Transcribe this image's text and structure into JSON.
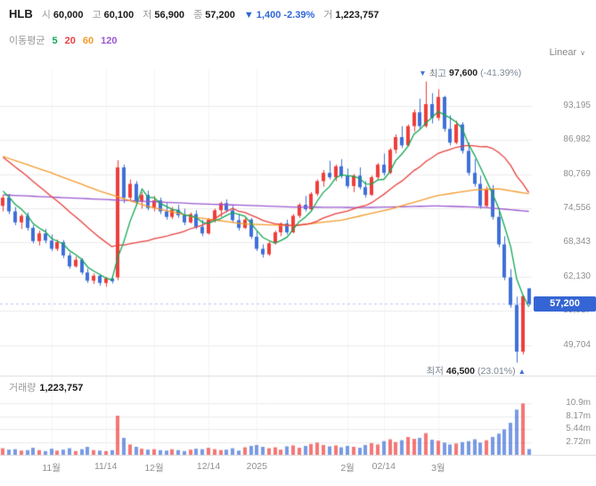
{
  "header": {
    "symbol": "HLB",
    "stats": [
      {
        "label": "시",
        "value": "60,000"
      },
      {
        "label": "고",
        "value": "60,100"
      },
      {
        "label": "저",
        "value": "56,900"
      },
      {
        "label": "종",
        "value": "57,200"
      }
    ],
    "change": {
      "arrow": "▼",
      "value": "1,400",
      "percent": "-2.39%"
    },
    "trade": {
      "label": "거",
      "value": "1,223,757"
    }
  },
  "legend": {
    "title": "이동평균",
    "items": [
      {
        "label": "5",
        "color": "#11a753"
      },
      {
        "label": "20",
        "color": "#e8413e"
      },
      {
        "label": "60",
        "color": "#f59b2c"
      },
      {
        "label": "120",
        "color": "#9b59d0"
      }
    ]
  },
  "toolbar": {
    "scale_label": "Linear",
    "chevron": "∨"
  },
  "annotations": {
    "high": {
      "marker": "▼",
      "label": "최고",
      "value": "97,600",
      "percent": "(-41.39%)"
    },
    "low": {
      "label": "최저",
      "value": "46,500",
      "percent": "(23.01%)",
      "marker": "▲"
    }
  },
  "price_badge": "57,200",
  "volume_panel": {
    "label": "거래량",
    "value": "1,223,757"
  },
  "axis": {
    "price_labels": [
      {
        "label": "93,195",
        "value": 93195
      },
      {
        "label": "86,982",
        "value": 86982
      },
      {
        "label": "80,769",
        "value": 80769
      },
      {
        "label": "74,556",
        "value": 74556
      },
      {
        "label": "68,343",
        "value": 68343
      },
      {
        "label": "62,130",
        "value": 62130
      },
      {
        "label": "55,917",
        "value": 55917
      },
      {
        "label": "49,704",
        "value": 49704
      }
    ],
    "time_ticks": [
      {
        "label": "11월",
        "index": 8
      },
      {
        "label": "11/14",
        "index": 17
      },
      {
        "label": "12월",
        "index": 25
      },
      {
        "label": "12/14",
        "index": 34
      },
      {
        "label": "2025",
        "index": 42
      },
      {
        "label": "2월",
        "index": 57
      },
      {
        "label": "02/14",
        "index": 63
      },
      {
        "label": "3월",
        "index": 72
      }
    ],
    "volume_labels": [
      {
        "label": "10.9m",
        "value": 10900000
      },
      {
        "label": "8.17m",
        "value": 8170000
      },
      {
        "label": "5.44m",
        "value": 5440000
      },
      {
        "label": "2.72m",
        "value": 2720000
      }
    ]
  },
  "chart_data": {
    "type": "candlestick",
    "title": "HLB daily candlestick chart with volume",
    "price_domain": [
      44800,
      99800
    ],
    "volume_max": 11900000,
    "current_price": 57200,
    "previous_close": 58600,
    "high_point": {
      "index": 70,
      "price": 97600,
      "change_from_high": "-41.39%"
    },
    "low_point": {
      "index": 85,
      "price": 46500,
      "change_from_low": "23.01%"
    },
    "today": {
      "open": 60000,
      "high": 60100,
      "low": 56900,
      "close": 57200,
      "volume": 1223757
    },
    "colors": {
      "up": "#ef3d3a",
      "down": "#3e6fd9",
      "ma5": "#11a753",
      "ma20": "#e8413e",
      "ma60": "#f59b2c",
      "ma120": "#9b59d0",
      "grid": "#ececec",
      "grid_vertical": "#f3f3f3",
      "border": "#dddddd",
      "axis_text": "#8f8f8f",
      "accent": "#2f66d8",
      "badge_bg": "#3565d4"
    },
    "candles": [
      [
        75000,
        77000,
        74000,
        76500
      ],
      [
        76500,
        77200,
        73500,
        74000
      ],
      [
        74000,
        74800,
        71500,
        72000
      ],
      [
        72000,
        73500,
        70800,
        73200
      ],
      [
        73200,
        73800,
        70500,
        71000
      ],
      [
        71000,
        71500,
        68200,
        68600
      ],
      [
        68600,
        70500,
        67800,
        70000
      ],
      [
        70000,
        70800,
        68200,
        68700
      ],
      [
        68700,
        69800,
        66800,
        67200
      ],
      [
        67200,
        68900,
        66800,
        68400
      ],
      [
        68400,
        68800,
        65500,
        66000
      ],
      [
        66000,
        66500,
        63600,
        64000
      ],
      [
        64000,
        65800,
        63800,
        65200
      ],
      [
        65200,
        65500,
        62500,
        62900
      ],
      [
        62900,
        63600,
        61000,
        61400
      ],
      [
        61400,
        62700,
        60800,
        62300
      ],
      [
        62300,
        62500,
        60500,
        61000
      ],
      [
        61000,
        62100,
        60300,
        61800
      ],
      [
        61800,
        62400,
        60900,
        61300
      ],
      [
        62000,
        83300,
        61500,
        82000
      ],
      [
        82000,
        82500,
        75500,
        76500
      ],
      [
        76500,
        79800,
        75800,
        79000
      ],
      [
        79000,
        79500,
        75000,
        75800
      ],
      [
        75800,
        77500,
        74500,
        77000
      ],
      [
        77000,
        77800,
        74200,
        74600
      ],
      [
        74600,
        76800,
        74000,
        76000
      ],
      [
        76000,
        76500,
        73500,
        74000
      ],
      [
        74000,
        75500,
        72500,
        73000
      ],
      [
        73000,
        74800,
        72600,
        74300
      ],
      [
        74300,
        75200,
        72800,
        73300
      ],
      [
        73300,
        74500,
        71500,
        72000
      ],
      [
        72000,
        73800,
        71800,
        73500
      ],
      [
        73500,
        74200,
        70800,
        71200
      ],
      [
        71200,
        72500,
        69500,
        70000
      ],
      [
        70000,
        72800,
        69800,
        72500
      ],
      [
        72500,
        74500,
        72000,
        74200
      ],
      [
        74200,
        75800,
        73000,
        75500
      ],
      [
        75500,
        76200,
        73800,
        74200
      ],
      [
        74200,
        75000,
        72000,
        72400
      ],
      [
        72400,
        73500,
        70500,
        71000
      ],
      [
        71000,
        72800,
        70800,
        72500
      ],
      [
        72500,
        72800,
        69000,
        69400
      ],
      [
        69400,
        70500,
        66800,
        67200
      ],
      [
        67200,
        68000,
        65600,
        66200
      ],
      [
        66200,
        68500,
        65900,
        68200
      ],
      [
        68200,
        70500,
        68000,
        70200
      ],
      [
        70200,
        72000,
        69500,
        71800
      ],
      [
        71800,
        72500,
        69800,
        70200
      ],
      [
        70200,
        73500,
        70000,
        73200
      ],
      [
        73200,
        75500,
        72800,
        75200
      ],
      [
        75200,
        76800,
        74000,
        74400
      ],
      [
        74400,
        77500,
        74200,
        77200
      ],
      [
        77200,
        79800,
        76800,
        79500
      ],
      [
        79500,
        81500,
        78500,
        81000
      ],
      [
        81000,
        83200,
        79800,
        80200
      ],
      [
        80200,
        82500,
        79500,
        82200
      ],
      [
        82200,
        83500,
        80000,
        80400
      ],
      [
        80400,
        81800,
        78200,
        78600
      ],
      [
        78600,
        80800,
        77500,
        80500
      ],
      [
        80500,
        82000,
        78000,
        78400
      ],
      [
        78400,
        79500,
        76500,
        77000
      ],
      [
        77000,
        80500,
        76800,
        80200
      ],
      [
        80200,
        82800,
        79800,
        82500
      ],
      [
        82500,
        84500,
        80500,
        81000
      ],
      [
        81000,
        85500,
        80800,
        85200
      ],
      [
        85200,
        88000,
        84500,
        87500
      ],
      [
        87500,
        89500,
        85500,
        86000
      ],
      [
        86000,
        89800,
        85800,
        89500
      ],
      [
        89500,
        92500,
        88500,
        92000
      ],
      [
        92000,
        94500,
        89000,
        89500
      ],
      [
        89500,
        97600,
        89200,
        93500
      ],
      [
        93500,
        95500,
        90000,
        91000
      ],
      [
        91000,
        96200,
        90500,
        94800
      ],
      [
        94800,
        95000,
        88500,
        89000
      ],
      [
        89000,
        91500,
        86000,
        86500
      ],
      [
        86500,
        90500,
        86200,
        89800
      ],
      [
        89800,
        90200,
        84500,
        85000
      ],
      [
        85000,
        86500,
        80500,
        81000
      ],
      [
        81000,
        83500,
        78500,
        79000
      ],
      [
        79000,
        80500,
        74500,
        75000
      ],
      [
        75000,
        78500,
        74800,
        78000
      ],
      [
        78000,
        78800,
        72500,
        73000
      ],
      [
        73000,
        74500,
        67500,
        68000
      ],
      [
        68000,
        69500,
        61500,
        62000
      ],
      [
        62000,
        63500,
        56500,
        57000
      ],
      [
        57000,
        58500,
        46500,
        48500
      ],
      [
        48500,
        58800,
        48000,
        58600
      ],
      [
        60000,
        60100,
        56900,
        57200
      ]
    ],
    "volumes": [
      1400000,
      1100000,
      1200000,
      900000,
      1000000,
      1500000,
      1000000,
      800000,
      1300000,
      900000,
      1100000,
      1400000,
      800000,
      1200000,
      1700000,
      1000000,
      900000,
      800000,
      1000000,
      8300000,
      3600000,
      2200000,
      1700000,
      1300000,
      1100000,
      1200000,
      1000000,
      900000,
      1200000,
      1000000,
      800000,
      1100000,
      1300000,
      1200000,
      1500000,
      1200000,
      1000000,
      1100000,
      1400000,
      900000,
      1600000,
      1900000,
      2100000,
      1700000,
      1400000,
      1600000,
      1100000,
      1800000,
      2000000,
      1500000,
      1900000,
      2300000,
      2600000,
      2100000,
      1800000,
      2000000,
      1600000,
      1900000,
      1700000,
      1500000,
      2100000,
      2500000,
      2200000,
      2900000,
      3300000,
      2700000,
      3100000,
      3800000,
      3400000,
      3600000,
      4600000,
      3200000,
      3000000,
      2600000,
      2200000,
      2400000,
      2700000,
      2900000,
      3300000,
      2600000,
      3100000,
      3800000,
      4500000,
      5400000,
      6800000,
      9600000,
      10900000,
      1223757
    ],
    "pre_closes": [
      91000,
      90000,
      89500,
      88500,
      88000,
      87500,
      86500,
      86000,
      85500,
      84500,
      84000,
      83000,
      82000,
      81500,
      80500,
      79500,
      78500,
      77500,
      76500
    ],
    "ma60_points": [
      [
        0,
        84000
      ],
      [
        8,
        81000
      ],
      [
        16,
        77700
      ],
      [
        24,
        74900
      ],
      [
        32,
        72900
      ],
      [
        40,
        71700
      ],
      [
        48,
        71400
      ],
      [
        56,
        72400
      ],
      [
        64,
        74400
      ],
      [
        72,
        76900
      ],
      [
        78,
        77900
      ],
      [
        82,
        78100
      ],
      [
        87,
        77200
      ]
    ],
    "ma120_points": [
      [
        0,
        77000
      ],
      [
        16,
        76200
      ],
      [
        32,
        75400
      ],
      [
        48,
        74800
      ],
      [
        60,
        74700
      ],
      [
        72,
        75000
      ],
      [
        80,
        74700
      ],
      [
        87,
        74000
      ]
    ]
  }
}
